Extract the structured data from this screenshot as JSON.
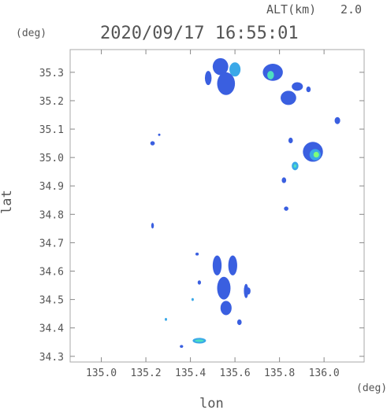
{
  "header": {
    "alt_label": "ALT(km)",
    "alt_value": "2.0",
    "timestamp": "2020/09/17 16:55:01"
  },
  "chart_data": {
    "type": "heatmap",
    "xlabel": "lon",
    "ylabel": "lat",
    "x_unit": "(deg)",
    "y_unit": "(deg)",
    "xlim": [
      134.86,
      136.18
    ],
    "ylim": [
      34.28,
      35.38
    ],
    "x_ticks": [
      "135.0",
      "135.2",
      "135.4",
      "135.6",
      "135.8",
      "136.0"
    ],
    "y_ticks": [
      "34.3",
      "34.4",
      "34.5",
      "34.6",
      "34.7",
      "34.8",
      "34.9",
      "35.0",
      "35.1",
      "35.2",
      "35.3"
    ],
    "grid": false,
    "colors": {
      "weak": "#3a5fe0",
      "medium": "#3aa8e8",
      "strong": "#4de0c0",
      "peak": "#7dff7a"
    },
    "cells": [
      {
        "lon": 135.535,
        "lat": 35.32,
        "w": 0.07,
        "h": 0.06,
        "level": "weak"
      },
      {
        "lon": 135.56,
        "lat": 35.26,
        "w": 0.08,
        "h": 0.08,
        "level": "weak"
      },
      {
        "lon": 135.6,
        "lat": 35.31,
        "w": 0.05,
        "h": 0.05,
        "level": "medium"
      },
      {
        "lon": 135.48,
        "lat": 35.28,
        "w": 0.03,
        "h": 0.05,
        "level": "weak"
      },
      {
        "lon": 135.77,
        "lat": 35.3,
        "w": 0.09,
        "h": 0.06,
        "level": "weak"
      },
      {
        "lon": 135.76,
        "lat": 35.29,
        "w": 0.03,
        "h": 0.03,
        "level": "strong"
      },
      {
        "lon": 135.84,
        "lat": 35.21,
        "w": 0.07,
        "h": 0.05,
        "level": "weak"
      },
      {
        "lon": 135.88,
        "lat": 35.25,
        "w": 0.05,
        "h": 0.03,
        "level": "weak"
      },
      {
        "lon": 135.93,
        "lat": 35.24,
        "w": 0.02,
        "h": 0.02,
        "level": "weak"
      },
      {
        "lon": 135.95,
        "lat": 35.02,
        "w": 0.09,
        "h": 0.07,
        "level": "weak"
      },
      {
        "lon": 135.96,
        "lat": 35.01,
        "w": 0.05,
        "h": 0.04,
        "level": "medium"
      },
      {
        "lon": 135.965,
        "lat": 35.01,
        "w": 0.025,
        "h": 0.02,
        "level": "peak"
      },
      {
        "lon": 135.87,
        "lat": 34.97,
        "w": 0.03,
        "h": 0.03,
        "level": "medium"
      },
      {
        "lon": 135.87,
        "lat": 34.97,
        "w": 0.012,
        "h": 0.012,
        "level": "strong"
      },
      {
        "lon": 135.85,
        "lat": 35.06,
        "w": 0.02,
        "h": 0.02,
        "level": "weak"
      },
      {
        "lon": 136.06,
        "lat": 35.13,
        "w": 0.025,
        "h": 0.025,
        "level": "weak"
      },
      {
        "lon": 135.82,
        "lat": 34.92,
        "w": 0.02,
        "h": 0.02,
        "level": "weak"
      },
      {
        "lon": 135.23,
        "lat": 35.05,
        "w": 0.02,
        "h": 0.015,
        "level": "weak"
      },
      {
        "lon": 135.26,
        "lat": 35.08,
        "w": 0.008,
        "h": 0.008,
        "level": "weak"
      },
      {
        "lon": 135.23,
        "lat": 34.76,
        "w": 0.012,
        "h": 0.02,
        "level": "weak"
      },
      {
        "lon": 135.52,
        "lat": 34.62,
        "w": 0.04,
        "h": 0.07,
        "level": "weak"
      },
      {
        "lon": 135.59,
        "lat": 34.62,
        "w": 0.04,
        "h": 0.07,
        "level": "weak"
      },
      {
        "lon": 135.55,
        "lat": 34.54,
        "w": 0.06,
        "h": 0.08,
        "level": "weak"
      },
      {
        "lon": 135.56,
        "lat": 34.47,
        "w": 0.05,
        "h": 0.05,
        "level": "weak"
      },
      {
        "lon": 135.65,
        "lat": 34.53,
        "w": 0.02,
        "h": 0.05,
        "level": "weak"
      },
      {
        "lon": 135.62,
        "lat": 34.42,
        "w": 0.02,
        "h": 0.02,
        "level": "weak"
      },
      {
        "lon": 135.44,
        "lat": 34.56,
        "w": 0.015,
        "h": 0.015,
        "level": "weak"
      },
      {
        "lon": 135.43,
        "lat": 34.66,
        "w": 0.015,
        "h": 0.01,
        "level": "weak"
      },
      {
        "lon": 135.41,
        "lat": 34.5,
        "w": 0.01,
        "h": 0.01,
        "level": "medium"
      },
      {
        "lon": 135.29,
        "lat": 34.43,
        "w": 0.01,
        "h": 0.01,
        "level": "medium"
      },
      {
        "lon": 135.44,
        "lat": 34.355,
        "w": 0.06,
        "h": 0.02,
        "level": "medium"
      },
      {
        "lon": 135.44,
        "lat": 34.355,
        "w": 0.04,
        "h": 0.008,
        "level": "strong"
      },
      {
        "lon": 135.36,
        "lat": 34.335,
        "w": 0.015,
        "h": 0.01,
        "level": "weak"
      },
      {
        "lon": 135.83,
        "lat": 34.82,
        "w": 0.02,
        "h": 0.015,
        "level": "weak"
      },
      {
        "lon": 135.66,
        "lat": 34.53,
        "w": 0.02,
        "h": 0.025,
        "level": "weak"
      }
    ]
  }
}
